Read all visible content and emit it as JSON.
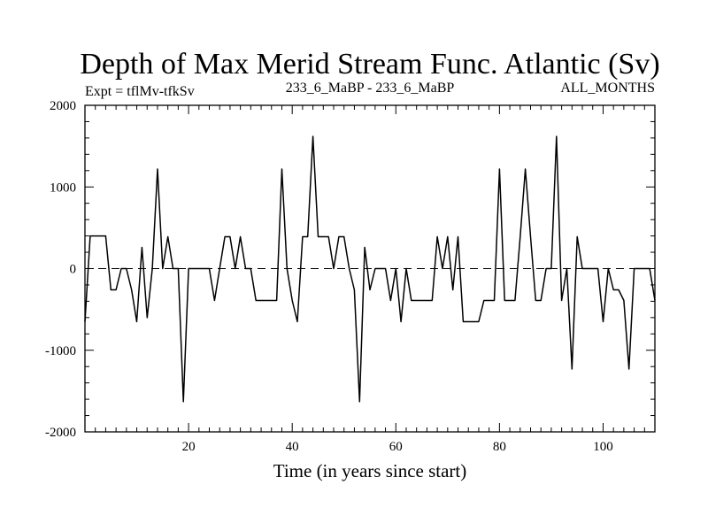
{
  "chart_data": {
    "type": "line",
    "title": "Depth of Max Merid Stream Func. Atlantic (Sv)",
    "subtitle_left": "Expt = tflMv-tfkSv",
    "subtitle_center": "233_6_MaBP - 233_6_MaBP",
    "subtitle_right": "ALL_MONTHS",
    "xlabel": "Time (in years since start)",
    "ylabel": "",
    "xlim": [
      0,
      110
    ],
    "ylim": [
      -2000,
      2000
    ],
    "x_ticks": [
      20,
      40,
      60,
      80,
      100
    ],
    "x_tick_labels": [
      "20",
      "40",
      "60",
      "80",
      "100"
    ],
    "y_ticks": [
      -2000,
      -1000,
      0,
      1000,
      2000
    ],
    "y_tick_labels": [
      "-2000",
      "-1000",
      "0",
      "1000",
      "2000"
    ],
    "x_minor_step": 2,
    "y_minor_step": 200,
    "reference_line": {
      "y": 0,
      "style": "dashed"
    },
    "series": [
      {
        "name": "tflMv-tfkSv",
        "x": [
          0,
          1,
          2,
          3,
          4,
          5,
          6,
          7,
          8,
          9,
          10,
          11,
          12,
          13,
          14,
          15,
          16,
          17,
          18,
          19,
          20,
          21,
          22,
          23,
          24,
          25,
          26,
          27,
          28,
          29,
          30,
          31,
          32,
          33,
          34,
          35,
          36,
          37,
          38,
          39,
          40,
          41,
          42,
          43,
          44,
          45,
          46,
          47,
          48,
          49,
          50,
          51,
          52,
          53,
          54,
          55,
          56,
          57,
          58,
          59,
          60,
          61,
          62,
          63,
          64,
          65,
          66,
          67,
          68,
          69,
          70,
          71,
          72,
          73,
          74,
          75,
          76,
          77,
          78,
          79,
          80,
          81,
          82,
          83,
          84,
          85,
          86,
          87,
          88,
          89,
          90,
          91,
          92,
          93,
          94,
          95,
          96,
          97,
          98,
          99,
          100,
          101,
          102,
          103,
          104,
          105,
          106,
          107,
          108,
          109,
          110
        ],
        "values": [
          -650,
          400,
          400,
          400,
          400,
          -260,
          -260,
          0,
          0,
          -260,
          -650,
          260,
          -600,
          0,
          1220,
          0,
          390,
          0,
          0,
          -1630,
          0,
          0,
          0,
          0,
          0,
          -390,
          0,
          390,
          390,
          0,
          390,
          0,
          0,
          -390,
          -390,
          -390,
          -390,
          -390,
          1220,
          0,
          -390,
          -650,
          390,
          390,
          1620,
          390,
          390,
          390,
          0,
          390,
          390,
          0,
          -260,
          -1630,
          260,
          -260,
          0,
          0,
          0,
          -390,
          0,
          -650,
          0,
          -390,
          -390,
          -390,
          -390,
          -390,
          390,
          0,
          390,
          -260,
          390,
          -650,
          -650,
          -650,
          -650,
          -390,
          -390,
          -390,
          1220,
          -390,
          -390,
          -390,
          390,
          1220,
          390,
          -390,
          -390,
          0,
          0,
          1620,
          -390,
          0,
          -1230,
          390,
          0,
          0,
          0,
          0,
          -650,
          0,
          -260,
          -260,
          -390,
          -1230,
          0,
          0,
          0,
          0,
          -390
        ]
      }
    ]
  }
}
